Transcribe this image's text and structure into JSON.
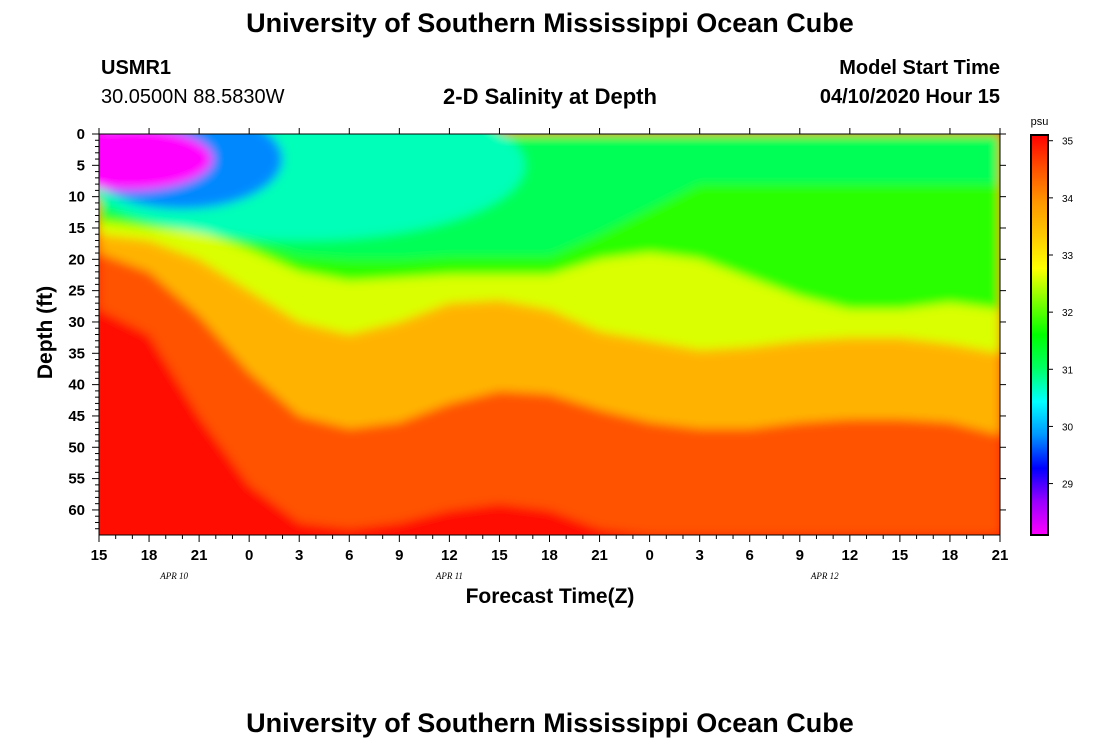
{
  "page": {
    "top_title": "University of Southern Mississippi Ocean Cube",
    "bottom_title": "University of Southern Mississippi Ocean Cube"
  },
  "station": {
    "id": "USMR1",
    "coords": "30.0500N 88.5830W"
  },
  "model": {
    "label": "Model Start Time",
    "start": "04/10/2020 Hour 15"
  },
  "chart_data": {
    "type": "heatmap",
    "title": "2-D Salinity at Depth",
    "xlabel": "Forecast Time(Z)",
    "ylabel": "Depth (ft)",
    "x_ticks": [
      "15",
      "18",
      "21",
      "0",
      "3",
      "6",
      "9",
      "12",
      "15",
      "18",
      "21",
      "0",
      "3",
      "6",
      "9",
      "12",
      "15",
      "18",
      "21"
    ],
    "x_range_hours": [
      0,
      54
    ],
    "date_labels": [
      {
        "text": "APR 10",
        "at_hour": 4.5
      },
      {
        "text": "APR 11",
        "at_hour": 21
      },
      {
        "text": "APR 12",
        "at_hour": 43.5
      }
    ],
    "y_ticks": [
      0,
      5,
      10,
      15,
      20,
      25,
      30,
      35,
      40,
      45,
      50,
      55,
      60
    ],
    "y_range": [
      0,
      64
    ],
    "colorbar": {
      "unit": "psu",
      "ticks": [
        29,
        30,
        31,
        32,
        33,
        34,
        35
      ],
      "range": [
        28.1,
        35.1
      ],
      "palette": [
        "#ff00ff",
        "#9a00ff",
        "#0000ff",
        "#0096ff",
        "#00ffff",
        "#00ff64",
        "#00ff00",
        "#7dff00",
        "#ffff00",
        "#ffc800",
        "#ff9600",
        "#ff5000",
        "#ff0000"
      ]
    },
    "description_grid": {
      "hours": [
        0,
        3,
        6,
        9,
        12,
        15,
        18,
        21,
        24,
        27,
        30,
        33,
        36,
        39,
        42,
        45,
        48,
        51,
        54
      ],
      "isolines_depth_ft": {
        "s31": [
          12.5,
          14,
          15,
          17,
          19.5,
          20,
          20,
          19.5,
          19.5,
          19.5,
          16,
          12,
          8,
          8,
          8,
          8,
          8,
          8,
          8
        ],
        "s32": [
          14,
          15,
          15.5,
          18.5,
          22,
          23.5,
          23,
          22.5,
          22.5,
          22.5,
          20,
          19,
          20,
          23,
          26,
          28,
          28,
          27,
          28
        ],
        "s33": [
          16,
          17,
          20,
          25,
          30,
          32,
          30,
          27,
          26.5,
          28,
          31.5,
          33,
          34.5,
          34,
          33,
          32.5,
          32.5,
          33.5,
          35
        ],
        "s34": [
          19,
          22,
          29,
          38,
          45,
          47,
          46,
          43,
          41,
          41.5,
          44,
          46,
          47,
          47,
          46,
          45.5,
          45.5,
          46,
          48
        ],
        "s35": [
          28,
          32,
          45,
          56,
          62,
          63,
          62,
          60,
          59,
          60,
          63,
          64,
          64,
          64,
          64,
          64,
          64,
          64,
          64
        ]
      },
      "low_core": {
        "hour": 1.8,
        "depth_ft": 4,
        "value": 28.1
      }
    }
  }
}
